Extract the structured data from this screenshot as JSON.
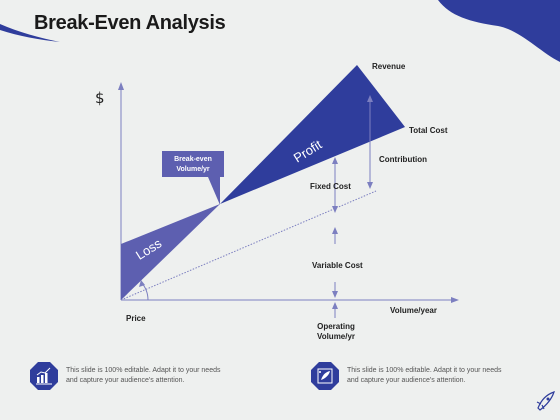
{
  "slide": {
    "title": "Break-Even Analysis"
  },
  "diagram": {
    "y_axis_symbol": "$",
    "labels": {
      "revenue": "Revenue",
      "total_cost": "Total Cost",
      "contribution": "Contribution",
      "fixed_cost": "Fixed Cost",
      "variable_cost": "Variable Cost",
      "volume_year": "Volume/year",
      "price": "Price",
      "operating_volume_line1": "Operating",
      "operating_volume_line2": "Volume/yr",
      "breakeven_line1": "Break-even",
      "breakeven_line2": "Volume/yr",
      "profit": "Profit",
      "loss": "Loss"
    }
  },
  "footer": [
    {
      "icon": "chart-growth-icon",
      "line1": "This slide is 100% editable. Adapt it to your needs",
      "line2": "and capture your audience's attention."
    },
    {
      "icon": "rocket-chart-icon",
      "line1": "This slide is 100% editable. Adapt it to your needs",
      "line2": "and capture your audience's attention."
    }
  ],
  "colors": {
    "accent_dark": "#2f3d9c",
    "accent_mid": "#5d5fb0",
    "axis": "#7c7fc0",
    "background": "#eef0ef"
  }
}
